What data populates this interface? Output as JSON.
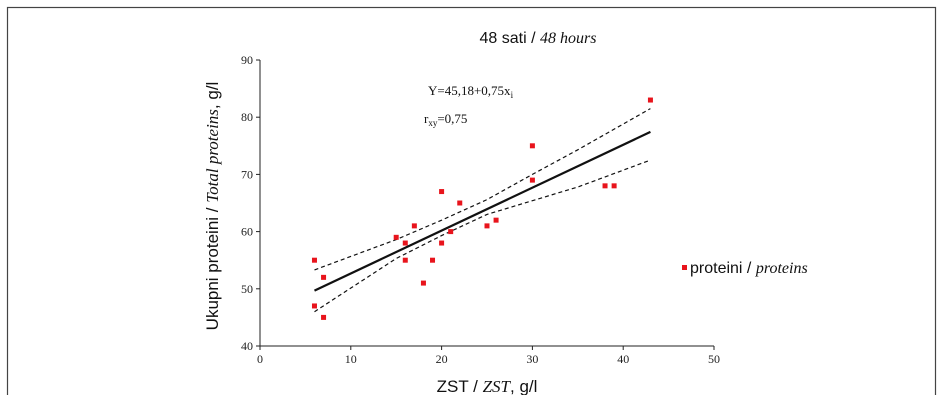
{
  "chart_data": {
    "type": "scatter",
    "title_plain": "48 sati / ",
    "title_italic": "48 hours",
    "xlabel_plain": "ZST / ",
    "xlabel_italic": "ZST",
    "xlabel_tail": ", g/l",
    "ylabel_plain": "Ukupni proteini / ",
    "ylabel_italic": "Total proteins",
    "ylabel_tail": ", g/l",
    "xlim": [
      0,
      50
    ],
    "ylim": [
      40,
      90
    ],
    "xticks": [
      0,
      10,
      20,
      30,
      40,
      50
    ],
    "yticks": [
      40,
      50,
      60,
      70,
      80,
      90
    ],
    "grid": false,
    "legend": {
      "position": "right",
      "label_plain": "proteini / ",
      "label_italic": "proteins"
    },
    "equation": {
      "prefix": "Y=45,18+0,75x",
      "subscript": "i"
    },
    "correlation": {
      "symbol": "r",
      "subscript": "xy",
      "value": "=0,75"
    },
    "fit_line": {
      "intercept": 45.18,
      "slope": 0.75,
      "x_range": [
        6,
        43
      ]
    },
    "confidence_upper": [
      [
        6,
        53.3
      ],
      [
        15,
        58.6
      ],
      [
        20,
        62.0
      ],
      [
        25,
        65.6
      ],
      [
        30,
        70.0
      ],
      [
        35,
        74.3
      ],
      [
        43,
        81.5
      ]
    ],
    "confidence_lower": [
      [
        6,
        46.0
      ],
      [
        15,
        55.3
      ],
      [
        20,
        59.3
      ],
      [
        25,
        63.0
      ],
      [
        30,
        65.4
      ],
      [
        35,
        67.8
      ],
      [
        43,
        72.5
      ]
    ],
    "series": [
      {
        "color": "#e8141c",
        "points": [
          [
            6,
            55
          ],
          [
            6,
            47
          ],
          [
            7,
            52
          ],
          [
            7,
            45
          ],
          [
            15,
            59
          ],
          [
            16,
            58
          ],
          [
            16,
            55
          ],
          [
            17,
            61
          ],
          [
            18,
            51
          ],
          [
            19,
            55
          ],
          [
            20,
            67
          ],
          [
            20,
            58
          ],
          [
            21,
            60
          ],
          [
            22,
            65
          ],
          [
            25,
            61
          ],
          [
            26,
            62
          ],
          [
            30,
            75
          ],
          [
            30,
            69
          ],
          [
            38,
            68
          ],
          [
            39,
            68
          ],
          [
            43,
            83
          ]
        ]
      }
    ]
  }
}
